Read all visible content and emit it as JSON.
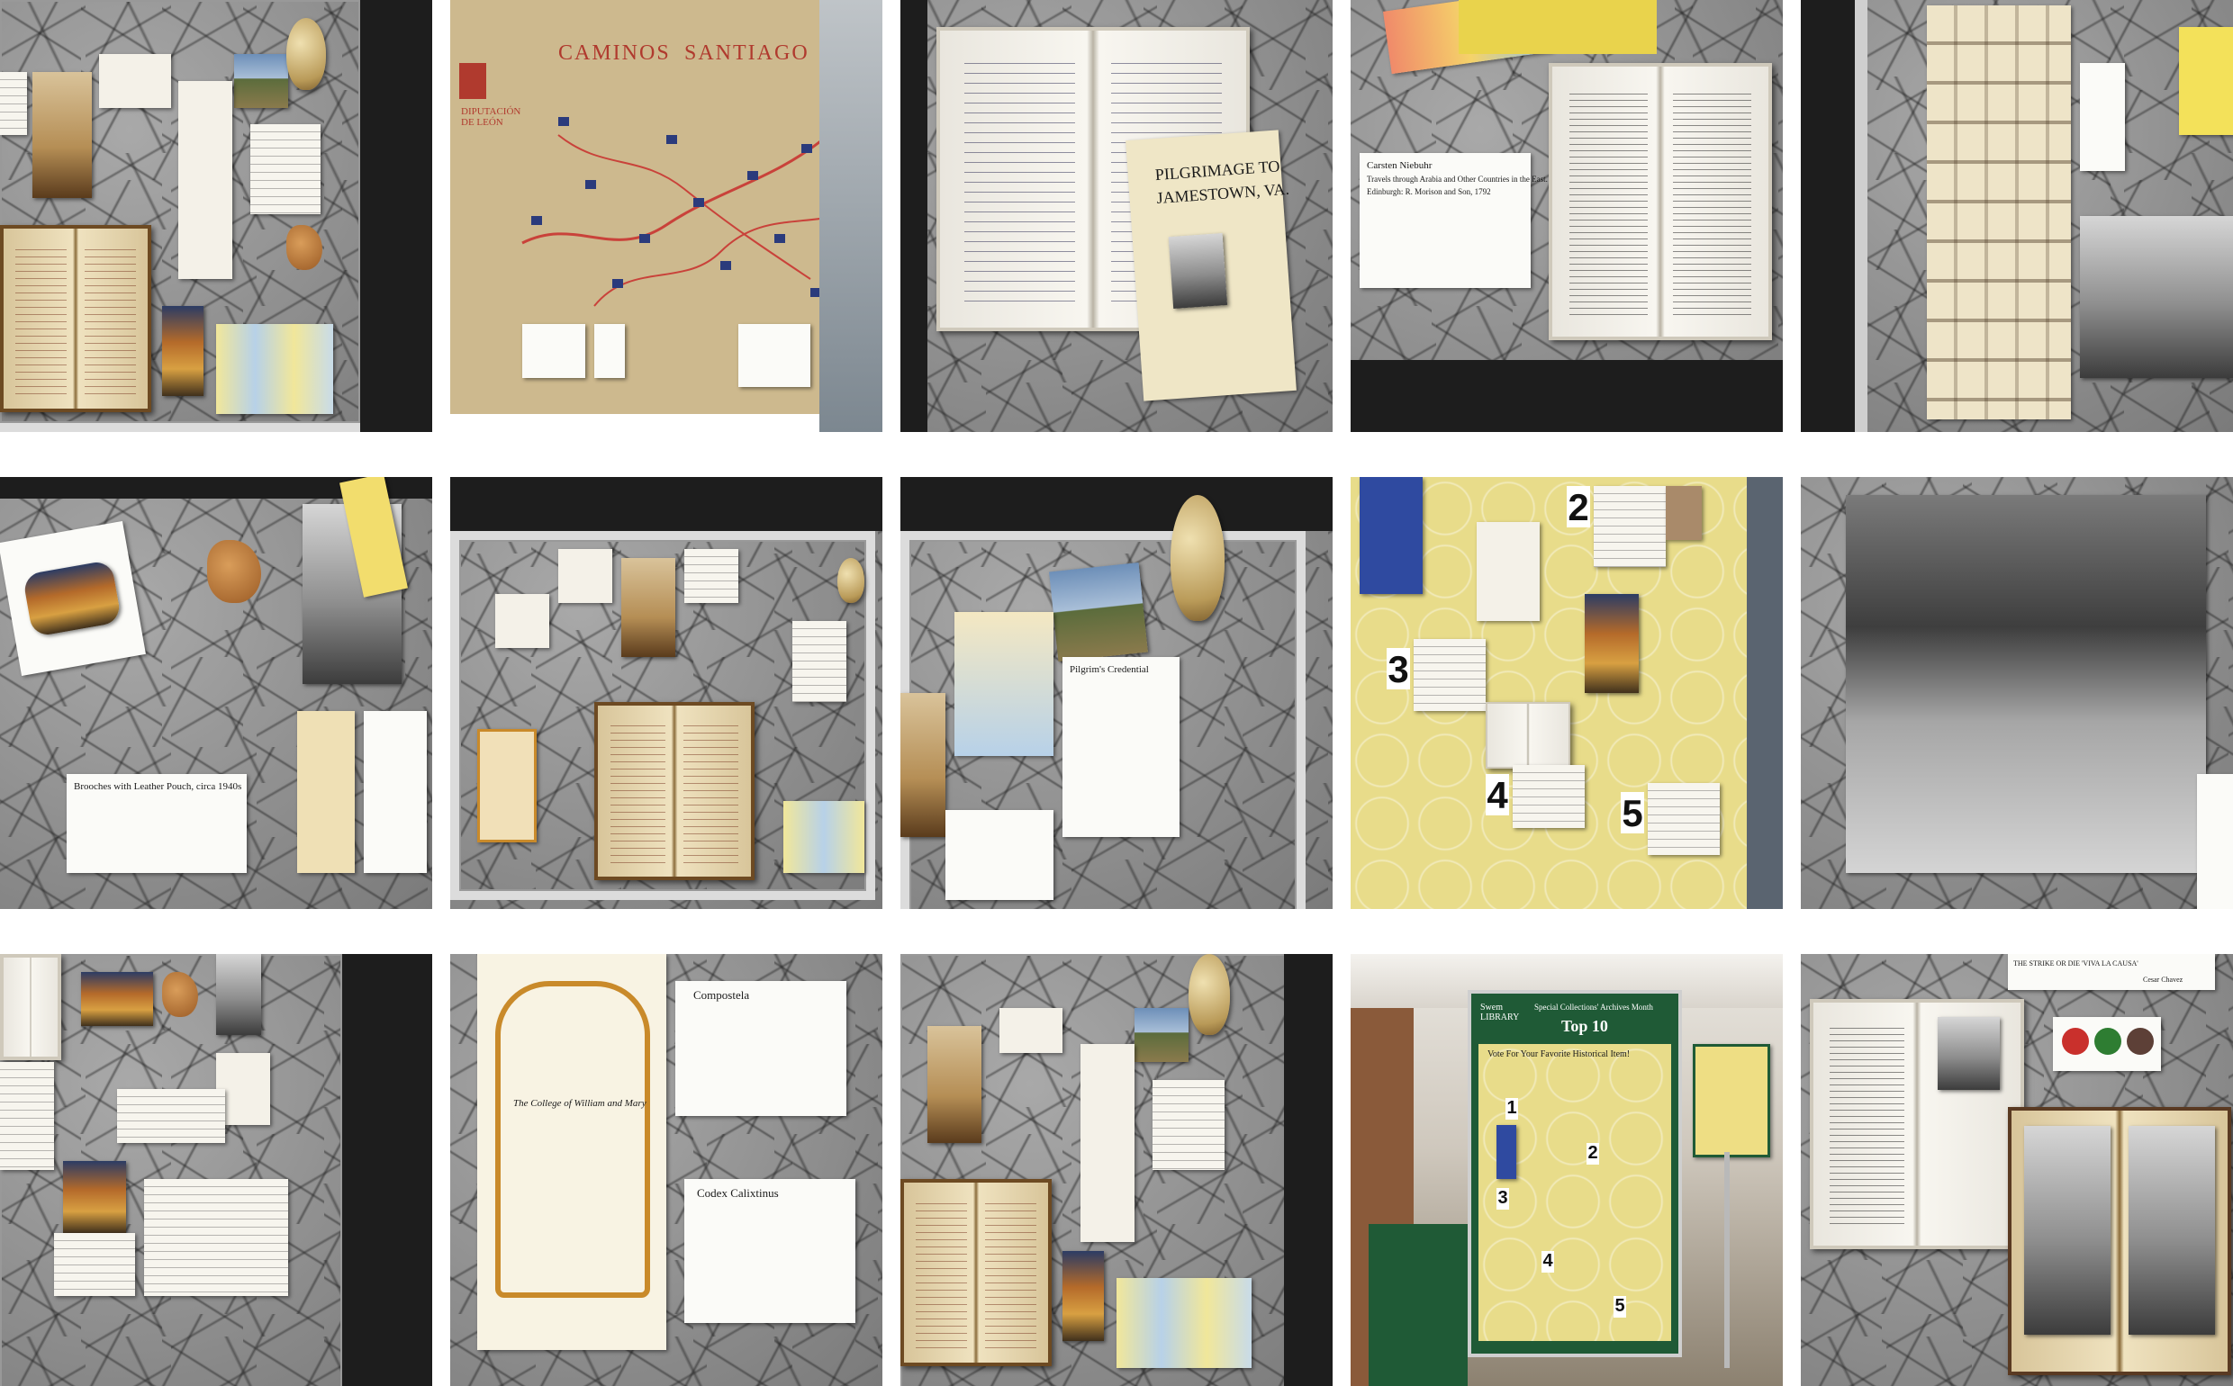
{
  "map_tile": {
    "org": "DIPUTACIÓN\nDE LEÓN",
    "title_left": "CAMINOS",
    "title_right": "SANTIAGO"
  },
  "pilgrimage_card": {
    "title_line1": "PILGRIMAGE TO",
    "title_line2": "JAMESTOWN, VA."
  },
  "niebuhr_label": {
    "heading": "Carsten Niebuhr",
    "line1": "Travels through Arabia and Other Countries in the East.",
    "line2": "Edinburgh: R. Morison and Son, 1792"
  },
  "brooches_label": {
    "heading": "Brooches with Leather Pouch, circa 1940s"
  },
  "credential_label": {
    "heading": "Pilgrim's Credential"
  },
  "top10_numbers": [
    "1",
    "2",
    "3",
    "4",
    "5"
  ],
  "compostela_label": {
    "heading": "Compostela"
  },
  "codex_label": {
    "heading": "Codex Calixtinus"
  },
  "college_certificate": {
    "title": "The College of William and Mary"
  },
  "swem_sign": {
    "library": "Swem\nLIBRARY",
    "event": "Special Collections' Archives Month",
    "headline": "Top 10",
    "vote": "Vote For Your Favorite Historical Item!"
  },
  "quote_card": {
    "text": "THE STRIKE OR DIE 'VIVA LA CAUSA'",
    "author": "Cesar Chavez"
  }
}
